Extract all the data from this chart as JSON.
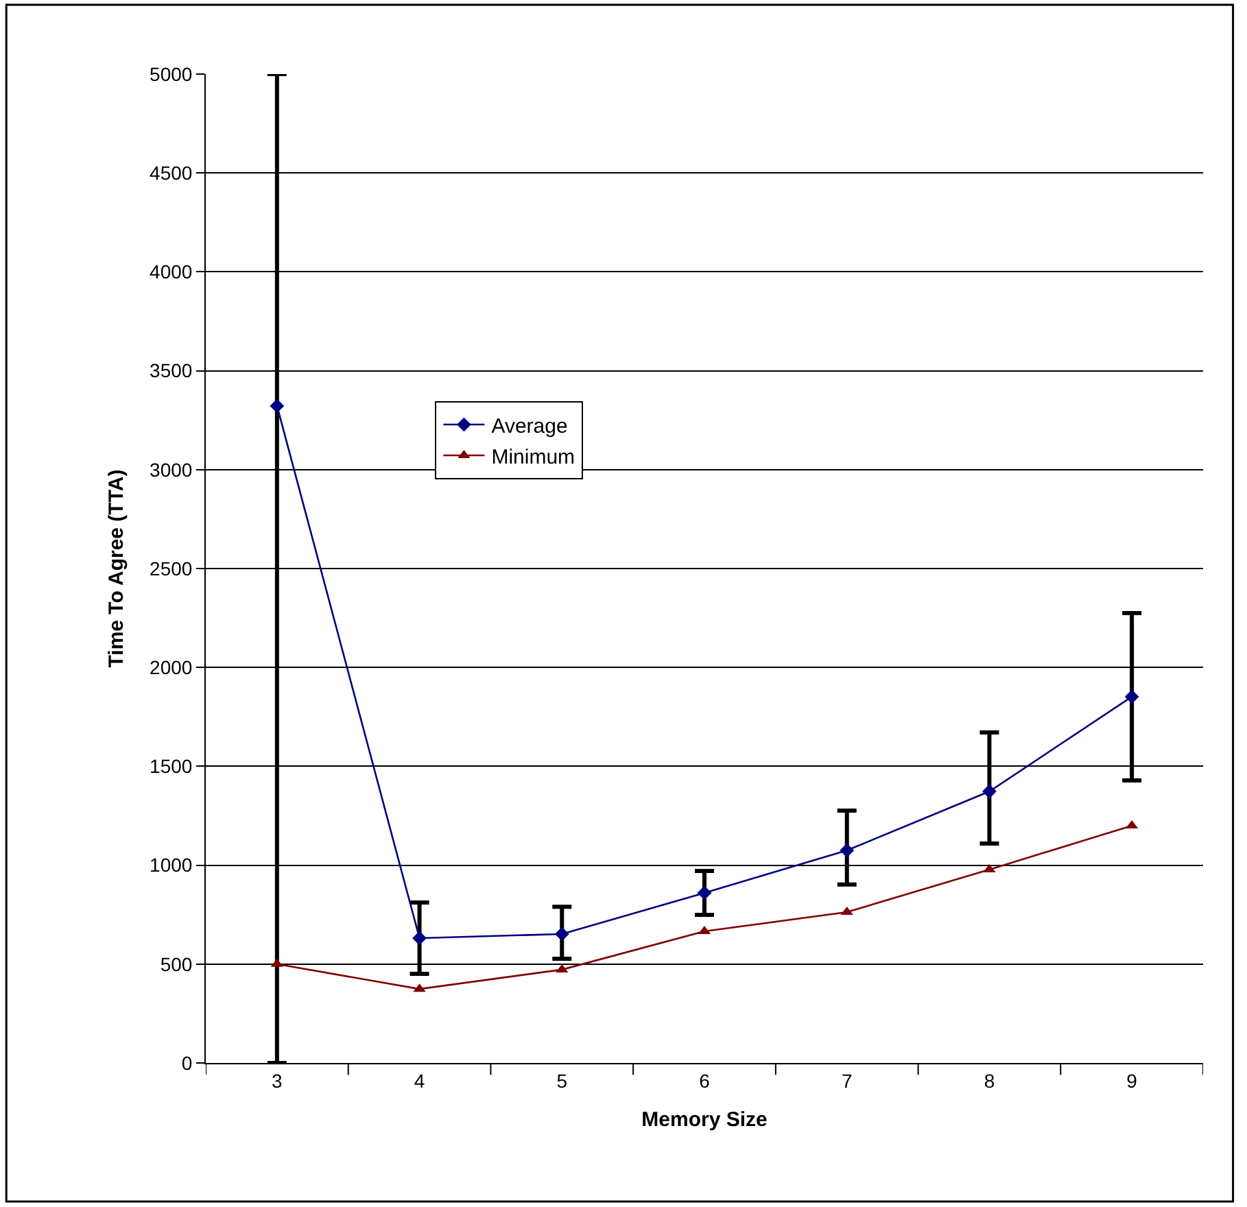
{
  "chart_data": {
    "type": "line",
    "xlabel": "Memory Size",
    "ylabel": "Time To Agree (TTA)",
    "categories": [
      "3",
      "4",
      "5",
      "6",
      "7",
      "8",
      "9"
    ],
    "series": [
      {
        "name": "Average",
        "color": "#000080",
        "marker": "diamond",
        "values": [
          3322,
          631,
          652,
          860,
          1075,
          1373,
          1852
        ],
        "errors": [
          [
            0,
            5000
          ],
          [
            451,
            811
          ],
          [
            527,
            790
          ],
          [
            749,
            971
          ],
          [
            902,
            1276
          ],
          [
            1110,
            1671
          ],
          [
            1429,
            2275
          ]
        ]
      },
      {
        "name": "Minimum",
        "color": "#800000",
        "marker": "triangle",
        "values": [
          500,
          374,
          472,
          666,
          763,
          978,
          1200
        ]
      }
    ],
    "ylim": [
      0,
      5000
    ],
    "yticks": [
      0,
      500,
      1000,
      1500,
      2000,
      2500,
      3000,
      3500,
      4000,
      4500,
      5000
    ],
    "grid": "y",
    "legend": "center left",
    "line_style": "solid"
  }
}
